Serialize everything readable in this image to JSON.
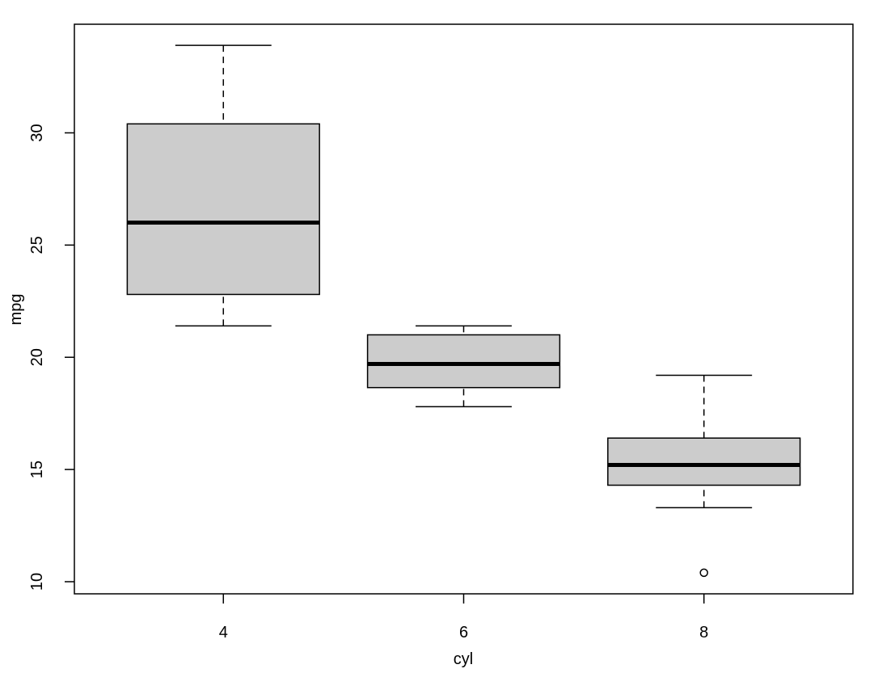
{
  "chart_data": {
    "type": "boxplot",
    "x_label": "cyl",
    "y_label": "mpg",
    "categories": [
      "4",
      "6",
      "8"
    ],
    "min": [
      21.4,
      17.8,
      13.3
    ],
    "q1": [
      22.8,
      18.65,
      14.3
    ],
    "median": [
      26.0,
      19.7,
      15.2
    ],
    "q3": [
      30.4,
      21.0,
      16.4
    ],
    "max": [
      33.9,
      21.4,
      19.2
    ],
    "outliers": [
      [],
      [],
      [
        10.4
      ]
    ],
    "color": "#cccccc",
    "ylim": [
      9.46,
      34.84
    ],
    "yticks": [
      10,
      15,
      20,
      25,
      30
    ]
  }
}
